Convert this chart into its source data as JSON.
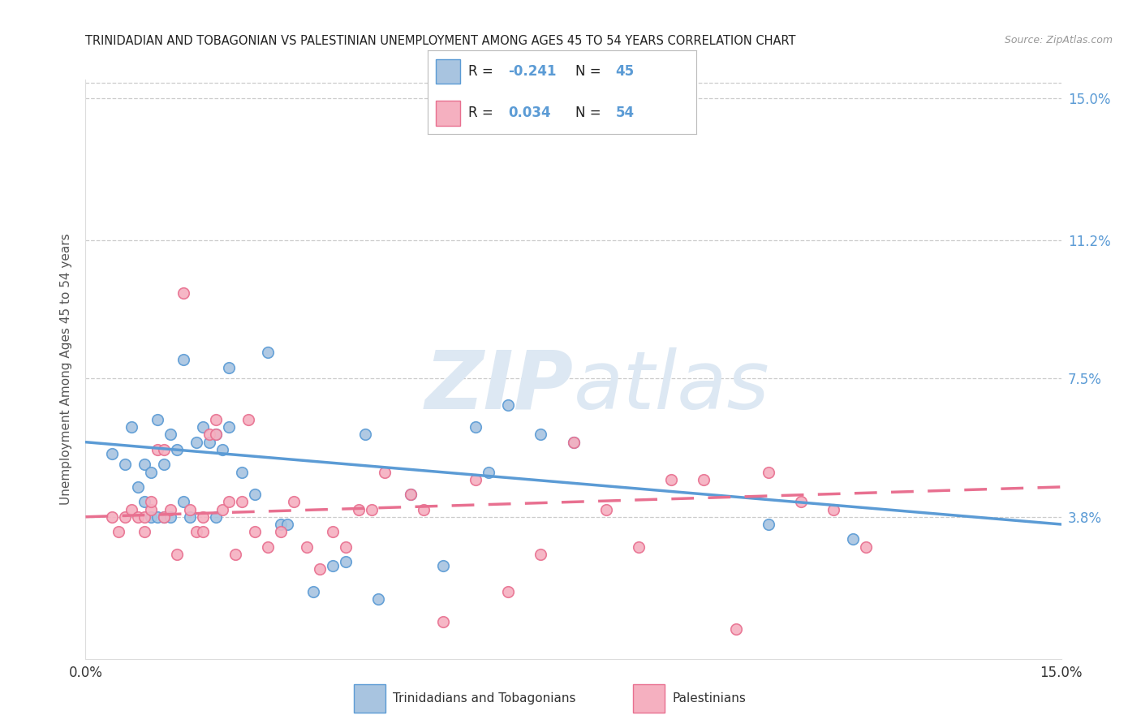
{
  "title": "TRINIDADIAN AND TOBAGONIAN VS PALESTINIAN UNEMPLOYMENT AMONG AGES 45 TO 54 YEARS CORRELATION CHART",
  "source": "Source: ZipAtlas.com",
  "ylabel": "Unemployment Among Ages 45 to 54 years",
  "xmin": 0.0,
  "xmax": 0.15,
  "ymin": 0.0,
  "ymax": 0.155,
  "ytick_vals": [
    0.038,
    0.075,
    0.112,
    0.15
  ],
  "ytick_labels": [
    "3.8%",
    "7.5%",
    "11.2%",
    "15.0%"
  ],
  "xtick_vals": [
    0.0,
    0.025,
    0.05,
    0.075,
    0.1,
    0.125,
    0.15
  ],
  "xtick_labels": [
    "0.0%",
    "",
    "",
    "",
    "",
    "",
    "15.0%"
  ],
  "color_blue": "#a8c4e0",
  "color_pink": "#f5b0c0",
  "edge_blue": "#5b9bd5",
  "edge_pink": "#e87090",
  "title_color": "#222222",
  "axis_label_color": "#555555",
  "right_tick_color": "#5b9bd5",
  "grid_color": "#cccccc",
  "watermark_color": "#dde8f3",
  "legend_text_color": "#222222",
  "legend_val_color": "#5b9bd5",
  "blue_line_x0": 0.0,
  "blue_line_x1": 0.15,
  "blue_line_y0": 0.058,
  "blue_line_y1": 0.036,
  "pink_line_x0": 0.0,
  "pink_line_x1": 0.15,
  "pink_line_y0": 0.038,
  "pink_line_y1": 0.046,
  "blue_scatter_x": [
    0.004,
    0.006,
    0.007,
    0.008,
    0.009,
    0.009,
    0.01,
    0.01,
    0.011,
    0.011,
    0.012,
    0.012,
    0.013,
    0.013,
    0.014,
    0.015,
    0.015,
    0.016,
    0.017,
    0.018,
    0.019,
    0.02,
    0.02,
    0.021,
    0.022,
    0.022,
    0.024,
    0.026,
    0.028,
    0.03,
    0.031,
    0.035,
    0.038,
    0.04,
    0.043,
    0.045,
    0.05,
    0.055,
    0.06,
    0.062,
    0.065,
    0.07,
    0.075,
    0.105,
    0.118
  ],
  "blue_scatter_y": [
    0.055,
    0.052,
    0.062,
    0.046,
    0.042,
    0.052,
    0.038,
    0.05,
    0.038,
    0.064,
    0.038,
    0.052,
    0.038,
    0.06,
    0.056,
    0.042,
    0.08,
    0.038,
    0.058,
    0.062,
    0.058,
    0.038,
    0.06,
    0.056,
    0.062,
    0.078,
    0.05,
    0.044,
    0.082,
    0.036,
    0.036,
    0.018,
    0.025,
    0.026,
    0.06,
    0.016,
    0.044,
    0.025,
    0.062,
    0.05,
    0.068,
    0.06,
    0.058,
    0.036,
    0.032
  ],
  "pink_scatter_x": [
    0.004,
    0.005,
    0.006,
    0.007,
    0.008,
    0.009,
    0.009,
    0.01,
    0.01,
    0.011,
    0.012,
    0.012,
    0.013,
    0.014,
    0.015,
    0.016,
    0.017,
    0.018,
    0.018,
    0.019,
    0.02,
    0.02,
    0.021,
    0.022,
    0.023,
    0.024,
    0.025,
    0.026,
    0.028,
    0.03,
    0.032,
    0.034,
    0.036,
    0.038,
    0.04,
    0.042,
    0.044,
    0.046,
    0.05,
    0.052,
    0.055,
    0.06,
    0.065,
    0.07,
    0.075,
    0.08,
    0.085,
    0.09,
    0.095,
    0.1,
    0.105,
    0.11,
    0.115,
    0.12
  ],
  "pink_scatter_y": [
    0.038,
    0.034,
    0.038,
    0.04,
    0.038,
    0.038,
    0.034,
    0.04,
    0.042,
    0.056,
    0.038,
    0.056,
    0.04,
    0.028,
    0.098,
    0.04,
    0.034,
    0.038,
    0.034,
    0.06,
    0.06,
    0.064,
    0.04,
    0.042,
    0.028,
    0.042,
    0.064,
    0.034,
    0.03,
    0.034,
    0.042,
    0.03,
    0.024,
    0.034,
    0.03,
    0.04,
    0.04,
    0.05,
    0.044,
    0.04,
    0.01,
    0.048,
    0.018,
    0.028,
    0.058,
    0.04,
    0.03,
    0.048,
    0.048,
    0.008,
    0.05,
    0.042,
    0.04,
    0.03
  ],
  "r_blue": "-0.241",
  "n_blue": "45",
  "r_pink": "0.034",
  "n_pink": "54",
  "legend_label_blue": "Trinidadians and Tobagonians",
  "legend_label_pink": "Palestinians"
}
